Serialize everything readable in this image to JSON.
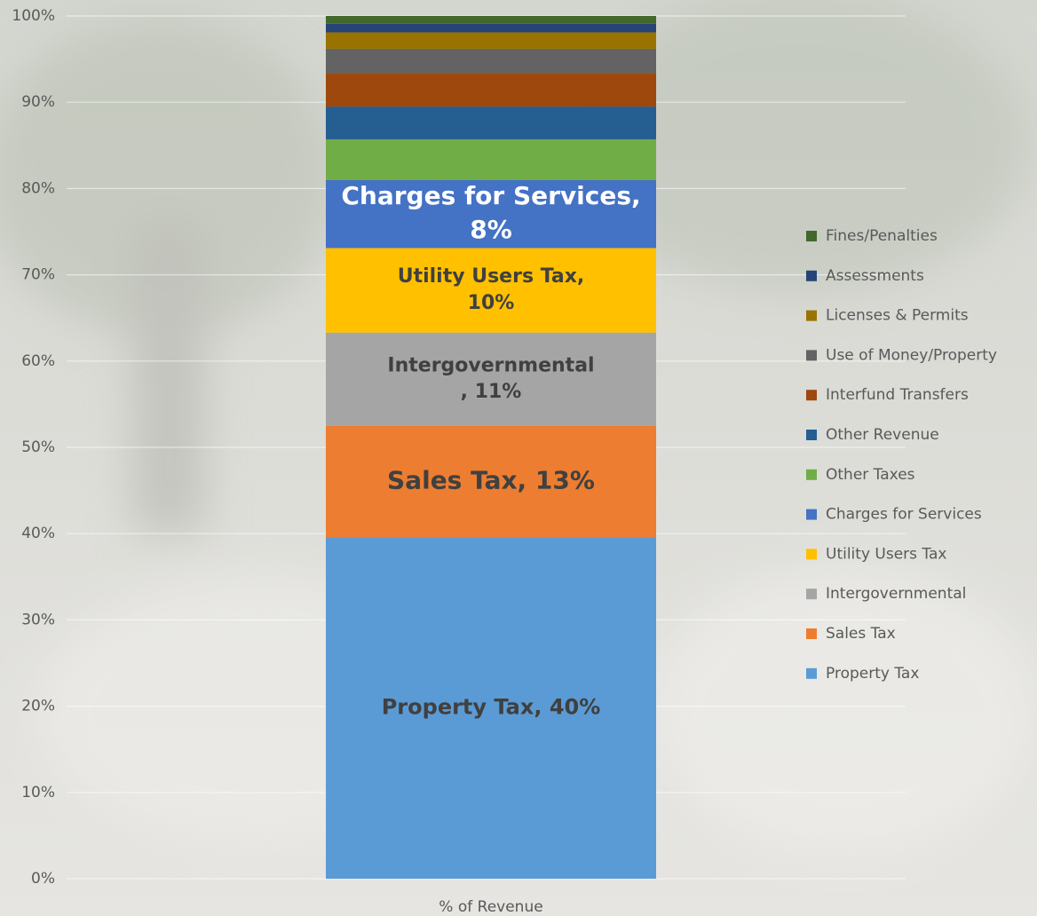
{
  "chart_data": {
    "type": "stacked_bar",
    "categories": [
      "% of Revenue"
    ],
    "ylim": [
      0,
      100
    ],
    "yticks": [
      {
        "value": 0,
        "label": "0%"
      },
      {
        "value": 10,
        "label": "10%"
      },
      {
        "value": 20,
        "label": "20%"
      },
      {
        "value": 30,
        "label": "30%"
      },
      {
        "value": 40,
        "label": "40%"
      },
      {
        "value": 50,
        "label": "50%"
      },
      {
        "value": 60,
        "label": "60%"
      },
      {
        "value": 70,
        "label": "70%"
      },
      {
        "value": 80,
        "label": "80%"
      },
      {
        "value": 90,
        "label": "90%"
      },
      {
        "value": 100,
        "label": "100%"
      }
    ],
    "grid": true,
    "legend": "right",
    "series": [
      {
        "name": "Property Tax",
        "color": "#5b9bd5",
        "values": [
          39.6
        ],
        "value_labels": [
          "Property Tax, 40%"
        ]
      },
      {
        "name": "Sales Tax",
        "color": "#ed7d31",
        "values": [
          12.9
        ],
        "value_labels": [
          "Sales Tax, 13%"
        ]
      },
      {
        "name": "Intergovernmental",
        "color": "#a5a5a5",
        "values": [
          10.8
        ],
        "value_labels": [
          "Intergovernmental\n, 11%"
        ]
      },
      {
        "name": "Utility Users Tax",
        "color": "#ffc000",
        "values": [
          9.8
        ],
        "value_labels": [
          "Utility Users Tax,\n10%"
        ]
      },
      {
        "name": "Charges for Services",
        "color": "#4472c4",
        "values": [
          7.9
        ],
        "value_labels": [
          "Charges for Services,\n8%"
        ]
      },
      {
        "name": "Other Taxes",
        "color": "#70ad47",
        "values": [
          4.7
        ]
      },
      {
        "name": "Other Revenue",
        "color": "#255e91",
        "values": [
          3.8
        ]
      },
      {
        "name": "Interfund Transfers",
        "color": "#9e480e",
        "values": [
          3.9
        ]
      },
      {
        "name": "Use of Money/Property",
        "color": "#636363",
        "values": [
          2.8
        ]
      },
      {
        "name": "Licenses & Permits",
        "color": "#997300",
        "values": [
          1.9
        ]
      },
      {
        "name": "Assessments",
        "color": "#264478",
        "values": [
          1.0
        ]
      },
      {
        "name": "Fines/Penalties",
        "color": "#43682b",
        "values": [
          0.9
        ]
      }
    ]
  }
}
